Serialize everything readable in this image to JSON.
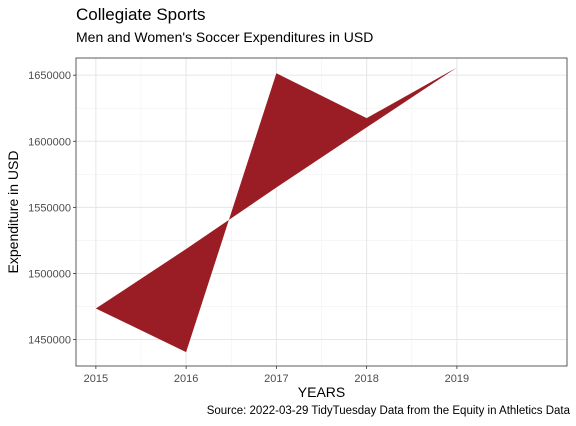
{
  "chart_data": {
    "type": "area",
    "title": "Collegiate Sports",
    "subtitle": "Men and Women's Soccer Expenditures in USD",
    "caption": "Source: 2022-03-29 TidyTuesday  Data from the Equity in Athletics Data",
    "xlabel": "YEARS",
    "ylabel": "Expenditure in USD",
    "x": [
      2015,
      2016,
      2017,
      2018,
      2019
    ],
    "series": [
      {
        "values": [
          1473500,
          1440500,
          1651500,
          1617500,
          1655800
        ]
      },
      {
        "values": [
          1473500,
          1518500,
          1565000,
          1610500,
          1655800
        ]
      }
    ],
    "xlim": [
      2014.78,
      2020.22
    ],
    "ylim": [
      1430000,
      1663000
    ],
    "xticks": [
      2015,
      2016,
      2017,
      2018,
      2019
    ],
    "yticks": [
      1450000,
      1500000,
      1550000,
      1600000,
      1650000
    ],
    "ytick_labels": [
      "1450000",
      "1500000",
      "1550000",
      "1600000",
      "1650000"
    ],
    "fill_color": "#9a1c24",
    "grid": true
  }
}
